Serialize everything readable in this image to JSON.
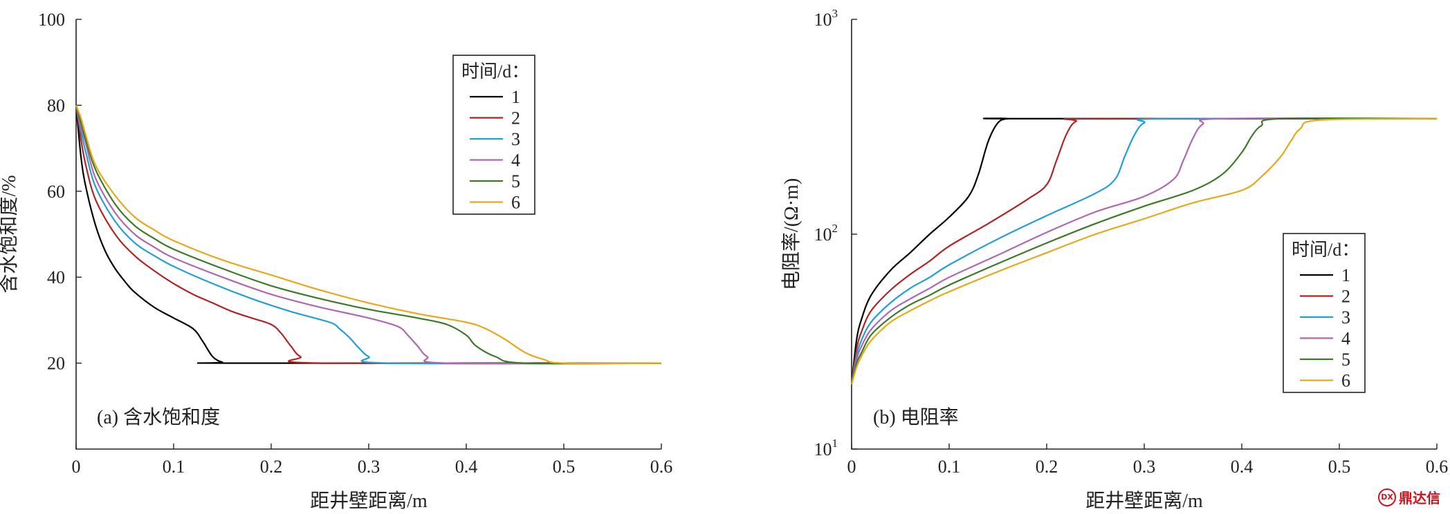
{
  "watermark": {
    "text": "鼎达信",
    "logo_glyph": "DX"
  },
  "chart_data": [
    {
      "id": "a",
      "type": "line",
      "panel_label": "(a) 含水饱和度",
      "xlabel": "距井壁距离/m",
      "ylabel": "含水饱和度/%",
      "xlim": [
        0,
        0.6
      ],
      "ylim": [
        0,
        100
      ],
      "yscale": "linear",
      "xticks": [
        0,
        0.1,
        0.2,
        0.3,
        0.4,
        0.5,
        0.6
      ],
      "xtick_labels": [
        "0",
        "0.1",
        "0.2",
        "0.3",
        "0.4",
        "0.5",
        "0.6"
      ],
      "yticks": [
        20,
        40,
        60,
        80,
        100
      ],
      "ytick_labels": [
        "20",
        "40",
        "60",
        "80",
        "100"
      ],
      "legend": {
        "title": "时间/d：",
        "placement": "top-center"
      },
      "series": [
        {
          "name": "1",
          "color": "#000000",
          "x": [
            0,
            0.005,
            0.01,
            0.02,
            0.03,
            0.04,
            0.05,
            0.06,
            0.08,
            0.1,
            0.12,
            0.13,
            0.14,
            0.15,
            0.16,
            0.6
          ],
          "y": [
            80,
            68,
            61,
            52,
            46,
            42,
            39,
            36.5,
            33,
            30.5,
            28,
            25,
            21.5,
            20.2,
            20,
            20
          ]
        },
        {
          "name": "2",
          "color": "#b22222",
          "x": [
            0,
            0.005,
            0.01,
            0.02,
            0.04,
            0.06,
            0.08,
            0.1,
            0.12,
            0.14,
            0.16,
            0.18,
            0.2,
            0.21,
            0.22,
            0.23,
            0.25,
            0.6
          ],
          "y": [
            80,
            72,
            66,
            58,
            50,
            45,
            41.5,
            38.5,
            36,
            34,
            32,
            30.5,
            29,
            27,
            24,
            21.5,
            20,
            20
          ]
        },
        {
          "name": "3",
          "color": "#1e9fd6",
          "x": [
            0,
            0.005,
            0.01,
            0.02,
            0.04,
            0.06,
            0.08,
            0.1,
            0.14,
            0.18,
            0.22,
            0.26,
            0.27,
            0.28,
            0.29,
            0.3,
            0.32,
            0.6
          ],
          "y": [
            80,
            74,
            69,
            61,
            53,
            48,
            45,
            42.5,
            38.5,
            35,
            32,
            29.5,
            28,
            26,
            23.5,
            21.5,
            20,
            20
          ]
        },
        {
          "name": "4",
          "color": "#b066b0",
          "x": [
            0,
            0.005,
            0.01,
            0.02,
            0.04,
            0.06,
            0.08,
            0.1,
            0.15,
            0.2,
            0.25,
            0.3,
            0.33,
            0.34,
            0.35,
            0.36,
            0.38,
            0.6
          ],
          "y": [
            80,
            75,
            71,
            63,
            55,
            50,
            47,
            44.5,
            40,
            36,
            33,
            30.5,
            28.5,
            26.5,
            24,
            21.5,
            20,
            20
          ]
        },
        {
          "name": "5",
          "color": "#3a7a24",
          "x": [
            0,
            0.005,
            0.01,
            0.02,
            0.04,
            0.06,
            0.08,
            0.1,
            0.15,
            0.2,
            0.25,
            0.3,
            0.35,
            0.38,
            0.4,
            0.41,
            0.43,
            0.46,
            0.6
          ],
          "y": [
            80,
            76,
            72,
            65,
            57,
            52,
            49,
            46.5,
            42,
            38,
            35,
            32.5,
            30.5,
            29,
            26.5,
            24,
            21.5,
            20,
            20
          ]
        },
        {
          "name": "6",
          "color": "#e6a817",
          "x": [
            0,
            0.005,
            0.01,
            0.02,
            0.04,
            0.06,
            0.08,
            0.1,
            0.15,
            0.2,
            0.25,
            0.3,
            0.35,
            0.4,
            0.42,
            0.44,
            0.46,
            0.48,
            0.5,
            0.6
          ],
          "y": [
            80,
            77,
            73,
            66,
            59,
            54,
            51,
            48.5,
            44,
            40.5,
            37,
            34,
            31.5,
            29.5,
            28,
            25.5,
            22.5,
            20.8,
            20,
            20
          ]
        }
      ]
    },
    {
      "id": "b",
      "type": "line",
      "panel_label": "(b) 电阻率",
      "xlabel": "距井壁距离/m",
      "ylabel": "电阻率/(Ω·m)",
      "xlim": [
        0,
        0.6
      ],
      "ylim": [
        10,
        1000
      ],
      "yscale": "log",
      "xticks": [
        0,
        0.1,
        0.2,
        0.3,
        0.4,
        0.5,
        0.6
      ],
      "xtick_labels": [
        "0",
        "0.1",
        "0.2",
        "0.3",
        "0.4",
        "0.5",
        "0.6"
      ],
      "yticks": [
        10,
        100,
        1000
      ],
      "ytick_labels": [
        {
          "base": "10",
          "exp": "1"
        },
        {
          "base": "10",
          "exp": "2"
        },
        {
          "base": "10",
          "exp": "3"
        }
      ],
      "legend": {
        "title": "时间/d：",
        "placement": "lower-right"
      },
      "series": [
        {
          "name": "1",
          "color": "#000000",
          "x": [
            0,
            0.005,
            0.01,
            0.02,
            0.04,
            0.06,
            0.08,
            0.1,
            0.12,
            0.13,
            0.14,
            0.15,
            0.16,
            0.17,
            0.6
          ],
          "y": [
            20,
            32,
            40,
            52,
            68,
            82,
            100,
            120,
            150,
            190,
            270,
            330,
            345,
            345,
            345
          ]
        },
        {
          "name": "2",
          "color": "#b22222",
          "x": [
            0,
            0.005,
            0.01,
            0.02,
            0.04,
            0.06,
            0.08,
            0.1,
            0.14,
            0.18,
            0.2,
            0.21,
            0.22,
            0.23,
            0.25,
            0.6
          ],
          "y": [
            20,
            29,
            35,
            44,
            55,
            65,
            75,
            88,
            112,
            145,
            170,
            220,
            290,
            335,
            345,
            345
          ]
        },
        {
          "name": "3",
          "color": "#1e9fd6",
          "x": [
            0,
            0.005,
            0.01,
            0.02,
            0.04,
            0.06,
            0.08,
            0.1,
            0.15,
            0.2,
            0.25,
            0.27,
            0.28,
            0.29,
            0.3,
            0.32,
            0.6
          ],
          "y": [
            20,
            27,
            32,
            39,
            48,
            56,
            63,
            72,
            95,
            122,
            155,
            180,
            230,
            290,
            330,
            345,
            345
          ]
        },
        {
          "name": "4",
          "color": "#b066b0",
          "x": [
            0,
            0.005,
            0.01,
            0.02,
            0.04,
            0.06,
            0.08,
            0.1,
            0.15,
            0.2,
            0.25,
            0.3,
            0.33,
            0.34,
            0.35,
            0.36,
            0.38,
            0.6
          ],
          "y": [
            20,
            26,
            30,
            36,
            44,
            50,
            56,
            63,
            80,
            102,
            127,
            150,
            180,
            220,
            280,
            325,
            345,
            345
          ]
        },
        {
          "name": "5",
          "color": "#3a7a24",
          "x": [
            0,
            0.005,
            0.01,
            0.02,
            0.04,
            0.06,
            0.08,
            0.1,
            0.15,
            0.2,
            0.25,
            0.3,
            0.35,
            0.38,
            0.4,
            0.41,
            0.42,
            0.44,
            0.6
          ],
          "y": [
            20,
            25,
            28,
            34,
            41,
            47,
            52,
            58,
            73,
            91,
            112,
            135,
            160,
            190,
            240,
            285,
            320,
            345,
            345
          ]
        },
        {
          "name": "6",
          "color": "#e6a817",
          "x": [
            0,
            0.005,
            0.01,
            0.02,
            0.04,
            0.06,
            0.08,
            0.1,
            0.15,
            0.2,
            0.25,
            0.3,
            0.35,
            0.4,
            0.42,
            0.44,
            0.45,
            0.46,
            0.48,
            0.6
          ],
          "y": [
            20,
            24,
            27,
            32,
            39,
            44,
            49,
            54,
            67,
            82,
            100,
            118,
            140,
            160,
            185,
            230,
            270,
            310,
            340,
            345
          ]
        }
      ]
    }
  ]
}
